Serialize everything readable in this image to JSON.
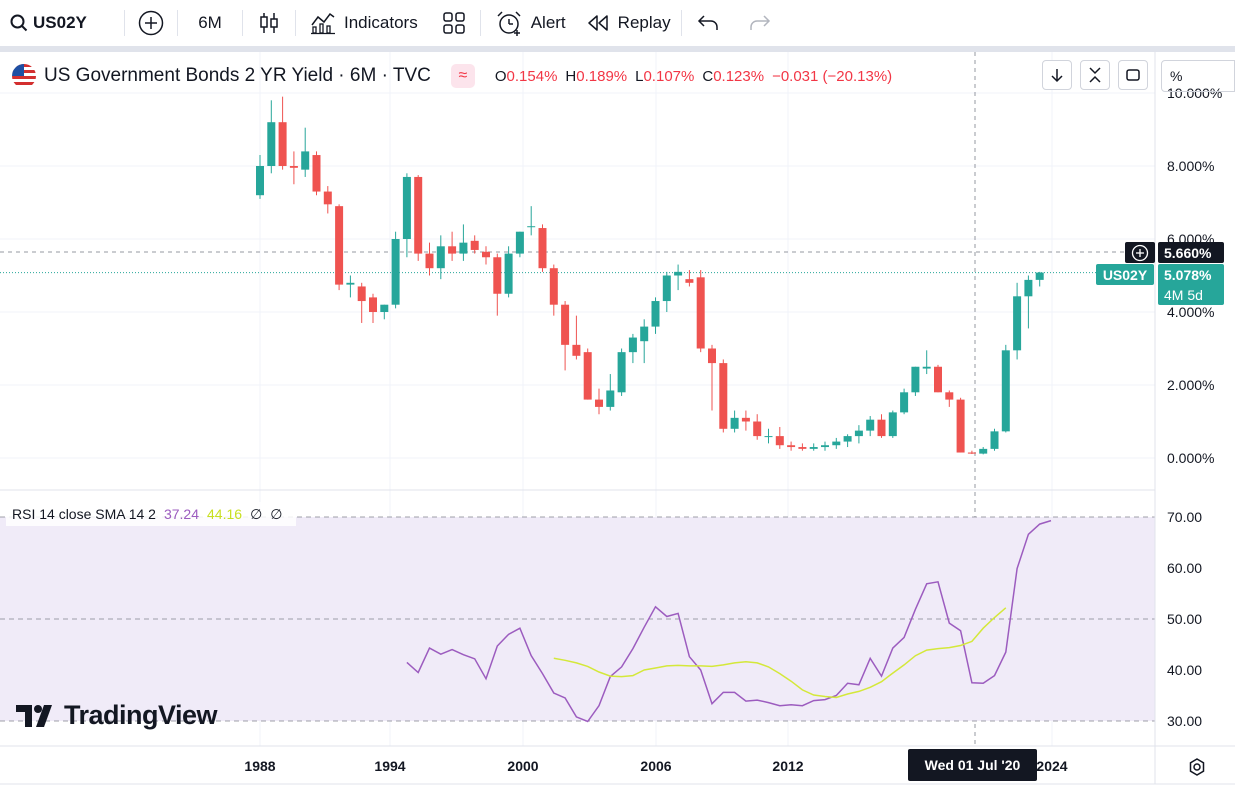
{
  "toolbar": {
    "symbol": "US02Y",
    "interval": "6M",
    "indicators_label": "Indicators",
    "alert_label": "Alert",
    "replay_label": "Replay"
  },
  "legend": {
    "title": "US Government Bonds 2 YR Yield · 6M · TVC",
    "open_key": "O",
    "open": "0.154%",
    "high_key": "H",
    "high": "0.189%",
    "low_key": "L",
    "low": "0.107%",
    "close_key": "C",
    "close": "0.123%",
    "change": "−0.031 (−20.13%)"
  },
  "scale_mode": "%",
  "price_tags": {
    "crosshair_price": "5.660%",
    "last_price": "5.078%",
    "symbol_tag": "US02Y",
    "countdown": "4M 5d"
  },
  "rsi_legend": {
    "name": "RSI 14 close SMA 14 2",
    "rsi_value": "37.24",
    "sma_value": "44.16",
    "extra1": "∅",
    "extra2": "∅"
  },
  "crosshair_date": "Wed 01 Jul '20",
  "logo_text": "TradingView",
  "colors": {
    "up": "#26a69a",
    "down": "#ef5350",
    "rsi": "#9c5cbf",
    "rsi_ma": "#d4e83a",
    "rsi_band": "#f0ebf8"
  },
  "chart_data": [
    {
      "type": "candlestick",
      "title": "US Government Bonds 2 YR Yield",
      "unit": "%",
      "x_ticks": [
        "1988",
        "1994",
        "2000",
        "2006",
        "2012",
        "2024"
      ],
      "y_ticks": [
        "0.000%",
        "2.000%",
        "4.000%",
        "6.000%",
        "8.000%",
        "10.000%"
      ],
      "ylim": [
        -0.3,
        10.0
      ],
      "start_date": "1987-07",
      "period_months": 6,
      "candles": [
        {
          "o": 7.2,
          "h": 8.3,
          "l": 7.1,
          "c": 8.0
        },
        {
          "o": 8.0,
          "h": 9.8,
          "l": 7.8,
          "c": 9.2
        },
        {
          "o": 9.2,
          "h": 9.9,
          "l": 7.9,
          "c": 8.0
        },
        {
          "o": 8.0,
          "h": 8.4,
          "l": 7.5,
          "c": 7.95
        },
        {
          "o": 7.9,
          "h": 9.05,
          "l": 7.7,
          "c": 8.4
        },
        {
          "o": 8.3,
          "h": 8.4,
          "l": 7.2,
          "c": 7.3
        },
        {
          "o": 7.3,
          "h": 7.45,
          "l": 6.7,
          "c": 6.95
        },
        {
          "o": 6.9,
          "h": 6.95,
          "l": 4.6,
          "c": 4.75
        },
        {
          "o": 4.75,
          "h": 5.0,
          "l": 4.4,
          "c": 4.8
        },
        {
          "o": 4.7,
          "h": 4.8,
          "l": 3.7,
          "c": 4.3
        },
        {
          "o": 4.4,
          "h": 4.5,
          "l": 3.7,
          "c": 4.0
        },
        {
          "o": 4.0,
          "h": 4.2,
          "l": 3.8,
          "c": 4.2
        },
        {
          "o": 4.2,
          "h": 6.2,
          "l": 4.1,
          "c": 6.0
        },
        {
          "o": 6.0,
          "h": 7.8,
          "l": 5.5,
          "c": 7.7
        },
        {
          "o": 7.7,
          "h": 7.75,
          "l": 5.4,
          "c": 5.6
        },
        {
          "o": 5.6,
          "h": 5.9,
          "l": 5.0,
          "c": 5.2
        },
        {
          "o": 5.2,
          "h": 6.1,
          "l": 4.9,
          "c": 5.8
        },
        {
          "o": 5.8,
          "h": 6.2,
          "l": 5.4,
          "c": 5.6
        },
        {
          "o": 5.6,
          "h": 6.4,
          "l": 5.4,
          "c": 5.9
        },
        {
          "o": 5.95,
          "h": 6.1,
          "l": 5.6,
          "c": 5.7
        },
        {
          "o": 5.65,
          "h": 5.8,
          "l": 5.3,
          "c": 5.5
        },
        {
          "o": 5.5,
          "h": 5.6,
          "l": 3.9,
          "c": 4.5
        },
        {
          "o": 4.5,
          "h": 5.8,
          "l": 4.4,
          "c": 5.6
        },
        {
          "o": 5.6,
          "h": 6.2,
          "l": 5.5,
          "c": 6.2
        },
        {
          "o": 6.35,
          "h": 6.9,
          "l": 6.1,
          "c": 6.35
        },
        {
          "o": 6.3,
          "h": 6.4,
          "l": 5.1,
          "c": 5.2
        },
        {
          "o": 5.2,
          "h": 5.3,
          "l": 3.9,
          "c": 4.2
        },
        {
          "o": 4.2,
          "h": 4.3,
          "l": 2.4,
          "c": 3.1
        },
        {
          "o": 3.1,
          "h": 3.9,
          "l": 2.7,
          "c": 2.8
        },
        {
          "o": 2.9,
          "h": 3.0,
          "l": 1.6,
          "c": 1.6
        },
        {
          "o": 1.6,
          "h": 1.9,
          "l": 1.2,
          "c": 1.4
        },
        {
          "o": 1.4,
          "h": 2.3,
          "l": 1.3,
          "c": 1.85
        },
        {
          "o": 1.8,
          "h": 3.0,
          "l": 1.7,
          "c": 2.9
        },
        {
          "o": 2.9,
          "h": 3.4,
          "l": 2.6,
          "c": 3.3
        },
        {
          "o": 3.2,
          "h": 3.8,
          "l": 2.6,
          "c": 3.6
        },
        {
          "o": 3.6,
          "h": 4.4,
          "l": 3.4,
          "c": 4.3
        },
        {
          "o": 4.3,
          "h": 5.1,
          "l": 4.0,
          "c": 5.0
        },
        {
          "o": 5.0,
          "h": 5.3,
          "l": 4.6,
          "c": 5.1
        },
        {
          "o": 4.9,
          "h": 5.15,
          "l": 4.7,
          "c": 4.8
        },
        {
          "o": 4.95,
          "h": 5.15,
          "l": 2.9,
          "c": 3.0
        },
        {
          "o": 3.0,
          "h": 3.1,
          "l": 1.3,
          "c": 2.6
        },
        {
          "o": 2.6,
          "h": 2.7,
          "l": 0.7,
          "c": 0.8
        },
        {
          "o": 0.8,
          "h": 1.3,
          "l": 0.7,
          "c": 1.1
        },
        {
          "o": 1.1,
          "h": 1.3,
          "l": 0.75,
          "c": 1.0
        },
        {
          "o": 1.0,
          "h": 1.2,
          "l": 0.5,
          "c": 0.6
        },
        {
          "o": 0.6,
          "h": 0.8,
          "l": 0.4,
          "c": 0.6
        },
        {
          "o": 0.6,
          "h": 0.85,
          "l": 0.25,
          "c": 0.35
        },
        {
          "o": 0.35,
          "h": 0.45,
          "l": 0.2,
          "c": 0.3
        },
        {
          "o": 0.3,
          "h": 0.4,
          "l": 0.2,
          "c": 0.25
        },
        {
          "o": 0.25,
          "h": 0.4,
          "l": 0.2,
          "c": 0.3
        },
        {
          "o": 0.3,
          "h": 0.45,
          "l": 0.2,
          "c": 0.35
        },
        {
          "o": 0.35,
          "h": 0.55,
          "l": 0.25,
          "c": 0.45
        },
        {
          "o": 0.45,
          "h": 0.65,
          "l": 0.3,
          "c": 0.6
        },
        {
          "o": 0.6,
          "h": 0.9,
          "l": 0.4,
          "c": 0.75
        },
        {
          "o": 0.75,
          "h": 1.15,
          "l": 0.6,
          "c": 1.05
        },
        {
          "o": 1.05,
          "h": 1.2,
          "l": 0.55,
          "c": 0.6
        },
        {
          "o": 0.6,
          "h": 1.3,
          "l": 0.55,
          "c": 1.25
        },
        {
          "o": 1.25,
          "h": 1.9,
          "l": 1.2,
          "c": 1.8
        },
        {
          "o": 1.8,
          "h": 2.5,
          "l": 1.7,
          "c": 2.5
        },
        {
          "o": 2.45,
          "h": 2.95,
          "l": 2.3,
          "c": 2.5
        },
        {
          "o": 2.5,
          "h": 2.55,
          "l": 1.8,
          "c": 1.8
        },
        {
          "o": 1.8,
          "h": 1.85,
          "l": 1.4,
          "c": 1.6
        },
        {
          "o": 1.6,
          "h": 1.65,
          "l": 0.15,
          "c": 0.15
        },
        {
          "o": 0.15,
          "h": 0.2,
          "l": 0.11,
          "c": 0.12
        },
        {
          "o": 0.12,
          "h": 0.3,
          "l": 0.1,
          "c": 0.25
        },
        {
          "o": 0.25,
          "h": 0.8,
          "l": 0.2,
          "c": 0.73
        },
        {
          "o": 0.73,
          "h": 3.1,
          "l": 0.7,
          "c": 2.95
        },
        {
          "o": 2.95,
          "h": 4.8,
          "l": 2.7,
          "c": 4.43
        },
        {
          "o": 4.43,
          "h": 5.0,
          "l": 3.55,
          "c": 4.88
        },
        {
          "o": 4.88,
          "h": 5.1,
          "l": 4.7,
          "c": 5.08
        }
      ]
    },
    {
      "type": "line",
      "title": "RSI 14 close SMA 14 2",
      "y_ticks": [
        "30.00",
        "40.00",
        "50.00",
        "60.00",
        "70.00"
      ],
      "ylim": [
        28,
        72
      ],
      "band": [
        30,
        70
      ],
      "series": [
        {
          "start_index": 13,
          "values": [
            41.5,
            39.5,
            44.3,
            43.1,
            44.0,
            43.0,
            42.2,
            38.3,
            44.7,
            47.0,
            48.2,
            42.8,
            39.3,
            35.5,
            34.5,
            30.8,
            29.9,
            33.0,
            38.7,
            40.6,
            44.2,
            48.4,
            52.4,
            50.5,
            51.1,
            42.6,
            40.0,
            33.4,
            35.6,
            35.6,
            33.9,
            34.1,
            33.6,
            33.0,
            33.2,
            33.0,
            34.0,
            34.2,
            35.0,
            37.4,
            37.1,
            42.3,
            38.8,
            44.3,
            46.4,
            51.9,
            56.9,
            57.3,
            49.2,
            47.7,
            37.5,
            37.4,
            38.9,
            43.5,
            59.9,
            66.6,
            68.6,
            69.3
          ]
        },
        {
          "start_index": 26,
          "values": [
            42.3,
            41.9,
            41.4,
            40.7,
            39.6,
            38.8,
            38.7,
            38.9,
            40.0,
            40.4,
            40.8,
            40.9,
            40.8,
            40.8,
            40.7,
            41.0,
            41.4,
            41.6,
            41.4,
            40.6,
            39.3,
            37.8,
            36.1,
            35.1,
            34.8,
            34.6,
            35.3,
            35.8,
            36.6,
            37.7,
            39.4,
            41.0,
            42.8,
            43.9,
            44.2,
            44.4,
            44.8,
            45.6,
            48.2,
            50.3,
            52.2
          ]
        }
      ]
    }
  ]
}
